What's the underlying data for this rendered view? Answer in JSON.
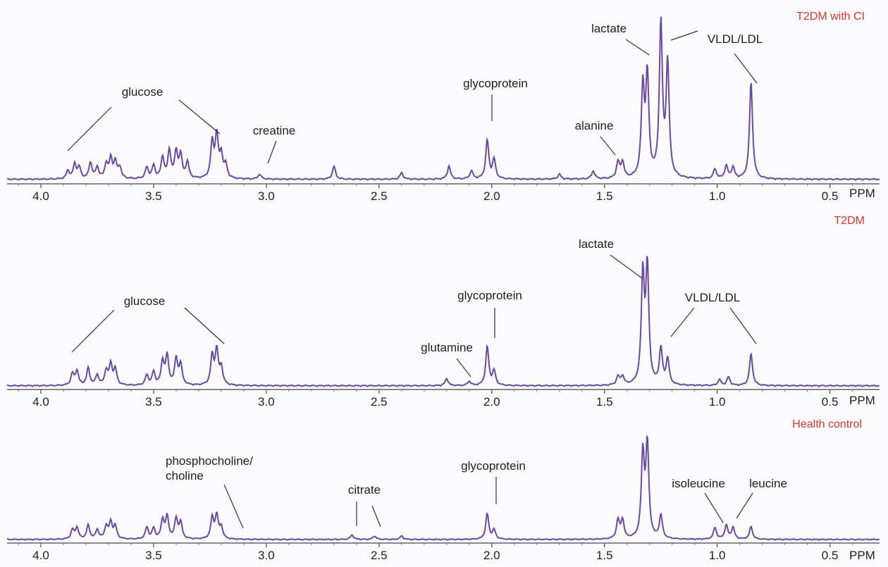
{
  "chart_data": [
    {
      "type": "line",
      "title": "T2DM with CI",
      "xlabel": "PPM",
      "xlim": [
        4.15,
        0.28
      ],
      "x_ticks": [
        "4.0",
        "3.5",
        "3.0",
        "2.5",
        "2.0",
        "1.5",
        "1.0",
        "0.5"
      ],
      "title_color": "#e0342a",
      "line_color": "#6a4a9c",
      "annotations": [
        "glucose",
        "creatine",
        "glycoprotein",
        "alanine",
        "lactate",
        "VLDL/LDL"
      ],
      "peaks": [
        {
          "ppm": 3.88,
          "height": 0.05
        },
        {
          "ppm": 3.85,
          "height": 0.09
        },
        {
          "ppm": 3.83,
          "height": 0.07
        },
        {
          "ppm": 3.78,
          "height": 0.1
        },
        {
          "ppm": 3.75,
          "height": 0.07
        },
        {
          "ppm": 3.71,
          "height": 0.09
        },
        {
          "ppm": 3.69,
          "height": 0.12
        },
        {
          "ppm": 3.67,
          "height": 0.1
        },
        {
          "ppm": 3.65,
          "height": 0.07
        },
        {
          "ppm": 3.53,
          "height": 0.07
        },
        {
          "ppm": 3.5,
          "height": 0.08
        },
        {
          "ppm": 3.46,
          "height": 0.13
        },
        {
          "ppm": 3.43,
          "height": 0.17
        },
        {
          "ppm": 3.4,
          "height": 0.16
        },
        {
          "ppm": 3.38,
          "height": 0.14
        },
        {
          "ppm": 3.35,
          "height": 0.1
        },
        {
          "ppm": 3.24,
          "height": 0.22
        },
        {
          "ppm": 3.22,
          "height": 0.26
        },
        {
          "ppm": 3.2,
          "height": 0.14
        },
        {
          "ppm": 3.18,
          "height": 0.08
        },
        {
          "ppm": 3.03,
          "height": 0.03
        },
        {
          "ppm": 2.7,
          "height": 0.08
        },
        {
          "ppm": 2.4,
          "height": 0.04
        },
        {
          "ppm": 2.19,
          "height": 0.08
        },
        {
          "ppm": 2.09,
          "height": 0.05
        },
        {
          "ppm": 2.02,
          "height": 0.24
        },
        {
          "ppm": 1.99,
          "height": 0.12
        },
        {
          "ppm": 1.7,
          "height": 0.03
        },
        {
          "ppm": 1.55,
          "height": 0.05
        },
        {
          "ppm": 1.44,
          "height": 0.1
        },
        {
          "ppm": 1.42,
          "height": 0.1
        },
        {
          "ppm": 1.33,
          "height": 0.55
        },
        {
          "ppm": 1.31,
          "height": 0.62
        },
        {
          "ppm": 1.25,
          "height": 0.95
        },
        {
          "ppm": 1.22,
          "height": 0.7
        },
        {
          "ppm": 1.01,
          "height": 0.06
        },
        {
          "ppm": 0.96,
          "height": 0.08
        },
        {
          "ppm": 0.93,
          "height": 0.07
        },
        {
          "ppm": 0.85,
          "height": 0.6
        }
      ]
    },
    {
      "type": "line",
      "title": "T2DM",
      "xlabel": "PPM",
      "xlim": [
        4.15,
        0.28
      ],
      "x_ticks": [
        "4.0",
        "3.5",
        "3.0",
        "2.5",
        "2.0",
        "1.5",
        "1.0",
        "0.5"
      ],
      "title_color": "#e0342a",
      "line_color": "#6a4a9c",
      "annotations": [
        "glucose",
        "glutamine",
        "glycoprotein",
        "lactate",
        "VLDL/LDL"
      ],
      "peaks": [
        {
          "ppm": 3.86,
          "height": 0.08
        },
        {
          "ppm": 3.84,
          "height": 0.1
        },
        {
          "ppm": 3.79,
          "height": 0.12
        },
        {
          "ppm": 3.75,
          "height": 0.07
        },
        {
          "ppm": 3.71,
          "height": 0.1
        },
        {
          "ppm": 3.69,
          "height": 0.14
        },
        {
          "ppm": 3.67,
          "height": 0.11
        },
        {
          "ppm": 3.53,
          "height": 0.07
        },
        {
          "ppm": 3.5,
          "height": 0.09
        },
        {
          "ppm": 3.46,
          "height": 0.16
        },
        {
          "ppm": 3.44,
          "height": 0.2
        },
        {
          "ppm": 3.4,
          "height": 0.18
        },
        {
          "ppm": 3.38,
          "height": 0.14
        },
        {
          "ppm": 3.24,
          "height": 0.2
        },
        {
          "ppm": 3.22,
          "height": 0.24
        },
        {
          "ppm": 3.2,
          "height": 0.12
        },
        {
          "ppm": 2.2,
          "height": 0.05
        },
        {
          "ppm": 2.1,
          "height": 0.03
        },
        {
          "ppm": 2.02,
          "height": 0.27
        },
        {
          "ppm": 1.99,
          "height": 0.1
        },
        {
          "ppm": 1.44,
          "height": 0.06
        },
        {
          "ppm": 1.42,
          "height": 0.06
        },
        {
          "ppm": 1.33,
          "height": 0.75
        },
        {
          "ppm": 1.31,
          "height": 0.8
        },
        {
          "ppm": 1.25,
          "height": 0.25
        },
        {
          "ppm": 1.22,
          "height": 0.18
        },
        {
          "ppm": 0.99,
          "height": 0.04
        },
        {
          "ppm": 0.95,
          "height": 0.06
        },
        {
          "ppm": 0.85,
          "height": 0.22
        }
      ]
    },
    {
      "type": "line",
      "title": "Health control",
      "xlabel": "PPM",
      "xlim": [
        4.15,
        0.28
      ],
      "x_ticks": [
        "4.0",
        "3.5",
        "3.0",
        "2.5",
        "2.0",
        "1.5",
        "1.0",
        "0.5"
      ],
      "title_color": "#e0342a",
      "line_color": "#6a4a9c",
      "annotations": [
        "phosphocholine/",
        "choline",
        "citrate",
        "glycoprotein",
        "isoleucine",
        "leucine"
      ],
      "peaks": [
        {
          "ppm": 3.86,
          "height": 0.08
        },
        {
          "ppm": 3.84,
          "height": 0.1
        },
        {
          "ppm": 3.79,
          "height": 0.12
        },
        {
          "ppm": 3.75,
          "height": 0.08
        },
        {
          "ppm": 3.71,
          "height": 0.11
        },
        {
          "ppm": 3.69,
          "height": 0.14
        },
        {
          "ppm": 3.67,
          "height": 0.11
        },
        {
          "ppm": 3.53,
          "height": 0.1
        },
        {
          "ppm": 3.5,
          "height": 0.09
        },
        {
          "ppm": 3.46,
          "height": 0.16
        },
        {
          "ppm": 3.44,
          "height": 0.19
        },
        {
          "ppm": 3.4,
          "height": 0.17
        },
        {
          "ppm": 3.38,
          "height": 0.14
        },
        {
          "ppm": 3.24,
          "height": 0.18
        },
        {
          "ppm": 3.22,
          "height": 0.2
        },
        {
          "ppm": 3.2,
          "height": 0.1
        },
        {
          "ppm": 2.62,
          "height": 0.04
        },
        {
          "ppm": 2.52,
          "height": 0.03
        },
        {
          "ppm": 2.4,
          "height": 0.03
        },
        {
          "ppm": 2.02,
          "height": 0.22
        },
        {
          "ppm": 1.99,
          "height": 0.08
        },
        {
          "ppm": 1.44,
          "height": 0.16
        },
        {
          "ppm": 1.42,
          "height": 0.16
        },
        {
          "ppm": 1.33,
          "height": 0.72
        },
        {
          "ppm": 1.31,
          "height": 0.8
        },
        {
          "ppm": 1.25,
          "height": 0.2
        },
        {
          "ppm": 1.01,
          "height": 0.1
        },
        {
          "ppm": 0.96,
          "height": 0.12
        },
        {
          "ppm": 0.93,
          "height": 0.1
        },
        {
          "ppm": 0.85,
          "height": 0.11
        }
      ]
    }
  ]
}
